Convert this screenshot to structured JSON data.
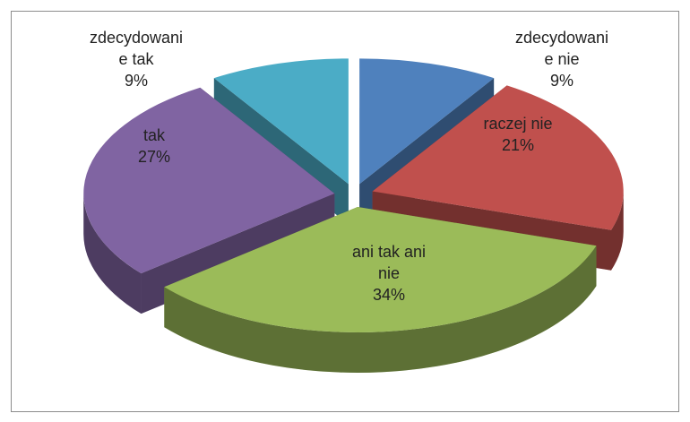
{
  "chart_data": {
    "type": "pie",
    "categories": [
      "zdecydowanie nie",
      "raczej nie",
      "ani tak ani nie",
      "tak",
      "zdecydowanie tak"
    ],
    "values": [
      9,
      21,
      34,
      27,
      9
    ],
    "value_labels": [
      "9%",
      "21%",
      "34%",
      "27%",
      "9%"
    ],
    "colors": [
      "#4f81bd",
      "#c0504d",
      "#9bbb59",
      "#8064a2",
      "#4bacc6"
    ]
  }
}
